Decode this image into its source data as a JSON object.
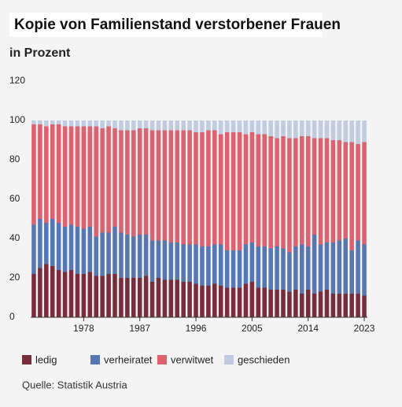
{
  "chart_data": {
    "type": "stacked_bar",
    "title": "Kopie von Familienstand verstorbener Frauen",
    "subtitle": "in Prozent",
    "source": "Quelle: Statistik Austria",
    "x": [
      1970,
      1971,
      1972,
      1973,
      1974,
      1975,
      1976,
      1977,
      1978,
      1979,
      1980,
      1981,
      1982,
      1983,
      1984,
      1985,
      1986,
      1987,
      1988,
      1989,
      1990,
      1991,
      1992,
      1993,
      1994,
      1995,
      1996,
      1997,
      1998,
      1999,
      2000,
      2001,
      2002,
      2003,
      2004,
      2005,
      2006,
      2007,
      2008,
      2009,
      2010,
      2011,
      2012,
      2013,
      2014,
      2015,
      2016,
      2017,
      2018,
      2019,
      2020,
      2021,
      2022,
      2023
    ],
    "xlim": [
      1969.5,
      2023.5
    ],
    "xticks": [
      1978,
      1987,
      1996,
      2005,
      2014,
      2023
    ],
    "ylim": [
      0,
      120
    ],
    "yticks": [
      0,
      20,
      40,
      60,
      80,
      100,
      120
    ],
    "grid": false,
    "legend": "bottom",
    "series": [
      {
        "name": "ledig",
        "color": "#7b2c3a",
        "values": [
          22,
          25,
          27,
          26,
          24,
          23,
          24,
          22,
          22,
          23,
          21,
          21,
          22,
          22,
          20,
          20,
          20,
          20,
          21,
          18,
          20,
          19,
          19,
          19,
          18,
          18,
          17,
          16,
          16,
          17,
          16,
          15,
          15,
          15,
          17,
          18,
          15,
          15,
          14,
          14,
          14,
          13,
          14,
          12,
          14,
          12,
          13,
          14,
          12,
          12,
          12,
          12,
          12,
          11
        ]
      },
      {
        "name": "verheiratet",
        "color": "#5577b3",
        "values": [
          25,
          25,
          21,
          24,
          24,
          23,
          23,
          24,
          23,
          23,
          20,
          22,
          21,
          24,
          23,
          22,
          21,
          22,
          21,
          21,
          19,
          20,
          19,
          19,
          19,
          19,
          20,
          20,
          20,
          20,
          21,
          19,
          19,
          19,
          20,
          20,
          21,
          21,
          21,
          22,
          21,
          20,
          22,
          25,
          22,
          30,
          24,
          24,
          26,
          27,
          28,
          22,
          27,
          26
        ]
      },
      {
        "name": "verwitwet",
        "color": "#e0606e",
        "values": [
          51,
          48,
          49,
          48,
          50,
          51,
          50,
          51,
          52,
          51,
          56,
          53,
          54,
          50,
          52,
          53,
          54,
          54,
          54,
          56,
          56,
          56,
          57,
          57,
          58,
          58,
          57,
          58,
          59,
          58,
          56,
          60,
          60,
          60,
          56,
          56,
          57,
          57,
          57,
          55,
          57,
          58,
          55,
          55,
          56,
          49,
          54,
          53,
          52,
          51,
          49,
          55,
          49,
          52
        ]
      },
      {
        "name": "geschieden",
        "color": "#bfcbe0",
        "values": [
          2,
          2,
          3,
          2,
          2,
          3,
          3,
          3,
          3,
          3,
          3,
          4,
          3,
          4,
          5,
          5,
          5,
          4,
          4,
          5,
          5,
          5,
          5,
          5,
          5,
          5,
          6,
          6,
          5,
          5,
          7,
          6,
          6,
          6,
          7,
          6,
          7,
          7,
          8,
          9,
          8,
          9,
          9,
          8,
          8,
          9,
          9,
          9,
          10,
          10,
          11,
          11,
          12,
          11
        ]
      }
    ]
  }
}
